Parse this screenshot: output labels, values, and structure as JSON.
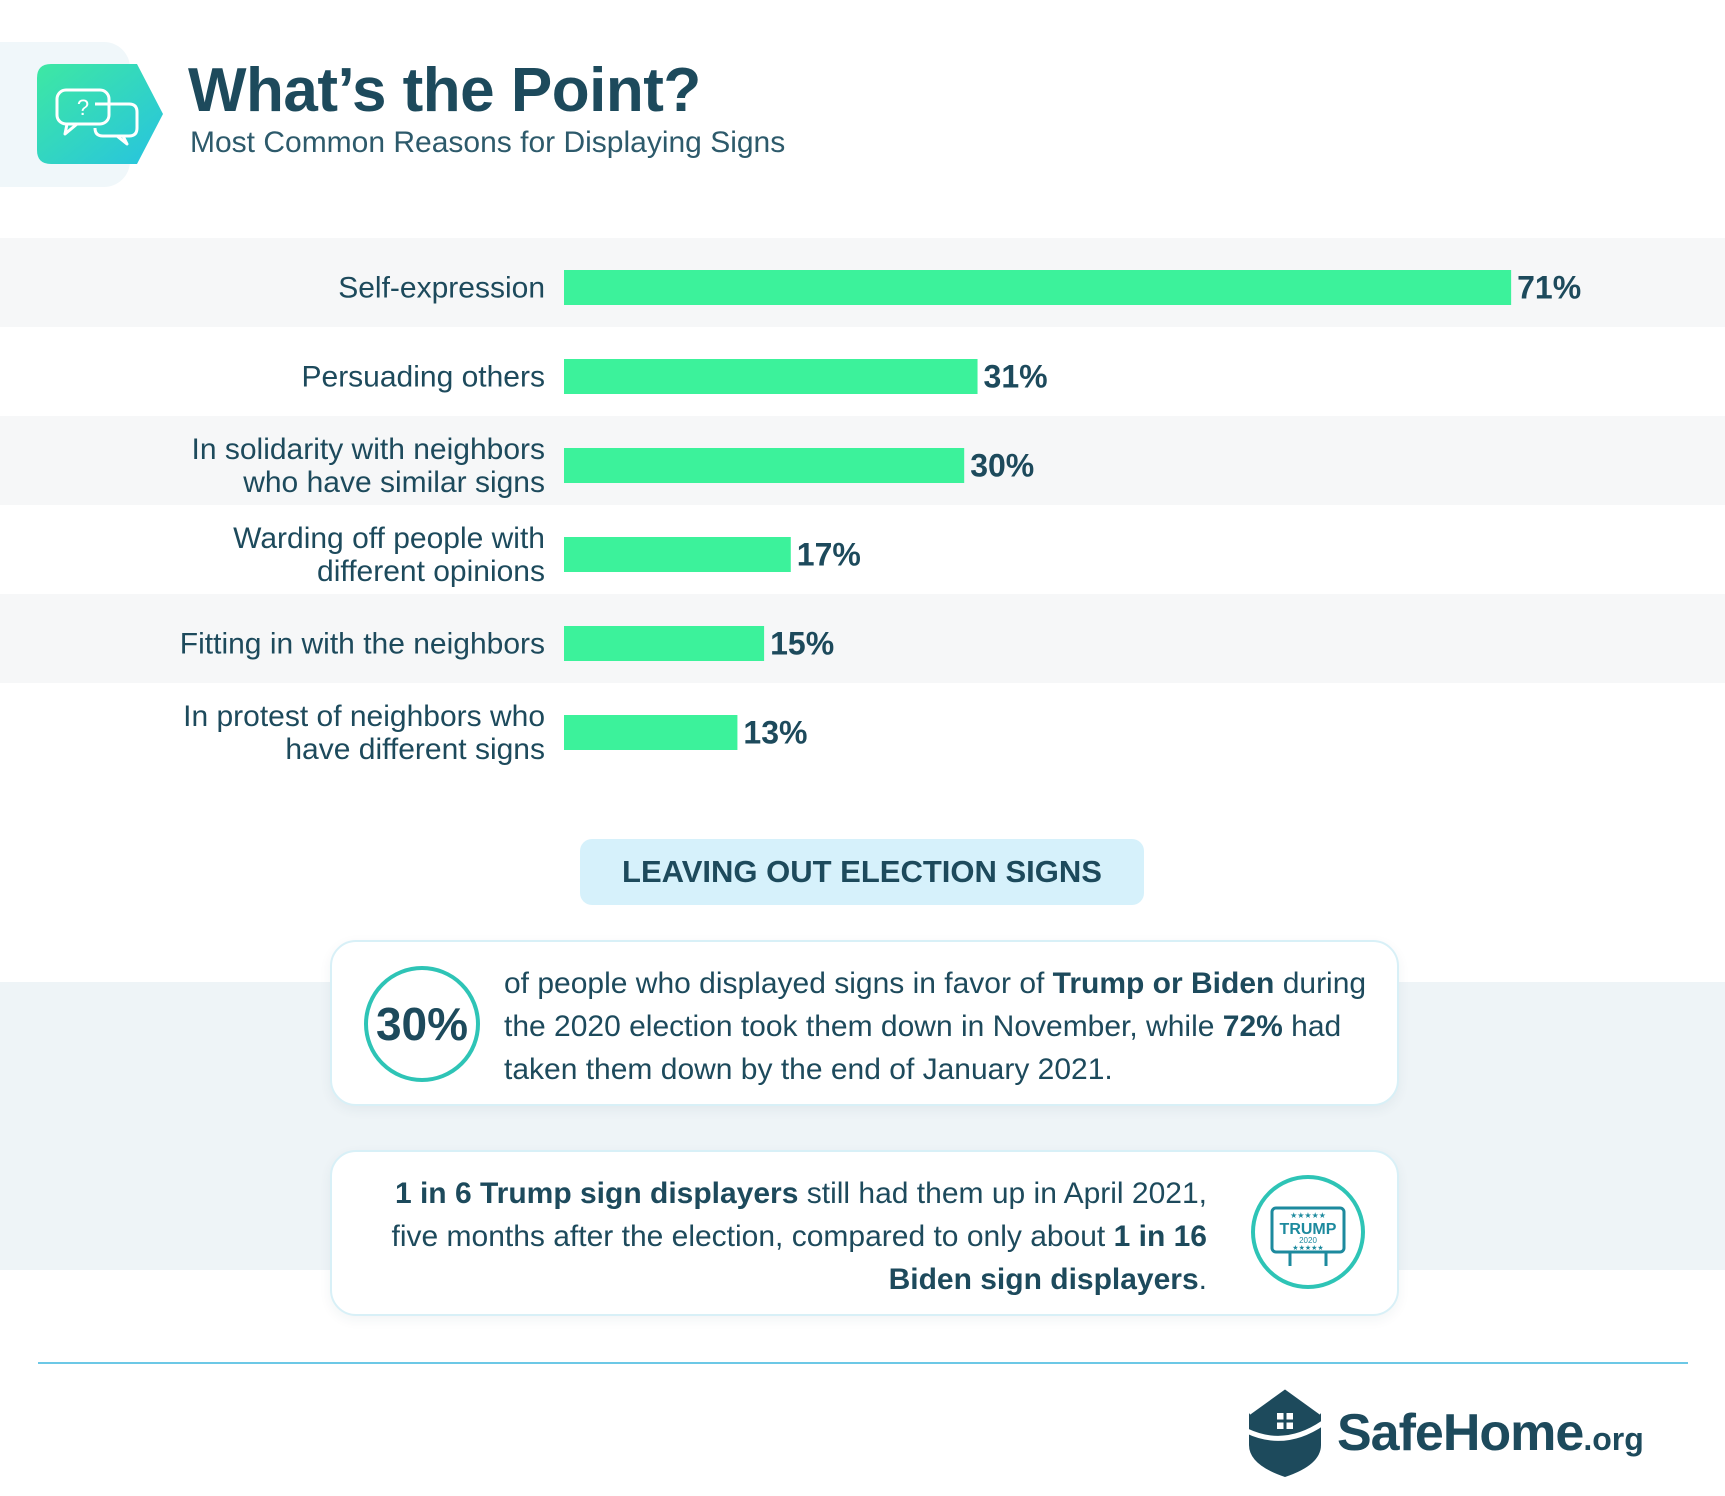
{
  "header": {
    "title": "What’s the Point?",
    "subtitle": "Most Common Reasons for Displaying Signs"
  },
  "colors": {
    "bar": "#3cf29b",
    "accent_teal": "#2ec4b6",
    "text_dark": "#1d4a5c",
    "row_band": "#f6f7f8",
    "banner_bg": "#d6f1fb"
  },
  "chart_data": {
    "type": "bar",
    "orientation": "horizontal",
    "title": "Most Common Reasons for Displaying Signs",
    "categories": [
      [
        "Self-expression"
      ],
      [
        "Persuading others"
      ],
      [
        "In solidarity with neighbors",
        "who have similar signs"
      ],
      [
        "Warding off people with",
        "different opinions"
      ],
      [
        "Fitting in with the neighbors"
      ],
      [
        "In protest of neighbors who",
        "have different signs"
      ]
    ],
    "values": [
      71,
      31,
      30,
      17,
      15,
      13
    ],
    "value_labels": [
      "71%",
      "31%",
      "30%",
      "17%",
      "15%",
      "13%"
    ],
    "unit": "%",
    "xlim": [
      0,
      100
    ],
    "grid": false,
    "legend": "none"
  },
  "section": {
    "banner": "LEAVING OUT ELECTION SIGNS"
  },
  "stats": {
    "stat1": {
      "big": "30%",
      "t1": "of people who displayed signs in favor of ",
      "b1": "Trump or Biden",
      "t2": " during the 2020 election took them down in November, while ",
      "b2": "72%",
      "t3": " had taken them down by the end of January 2021."
    },
    "stat2": {
      "b1": "1 in 6 Trump sign displayers",
      "t1": " still had them up in April 2021, five months after the election, compared to only about ",
      "b2": "1 in 16 Biden sign displayers",
      "t2": "."
    },
    "sign_icon": {
      "name": "trump-yard-sign-icon",
      "sign_text": "TRUMP",
      "sign_year": "2020"
    },
    "header_icon": "question-chat-bubbles-icon"
  },
  "footer": {
    "logo_name": "SafeHome",
    "logo_tld": ".org",
    "logo_icon": "house-shield-icon"
  }
}
